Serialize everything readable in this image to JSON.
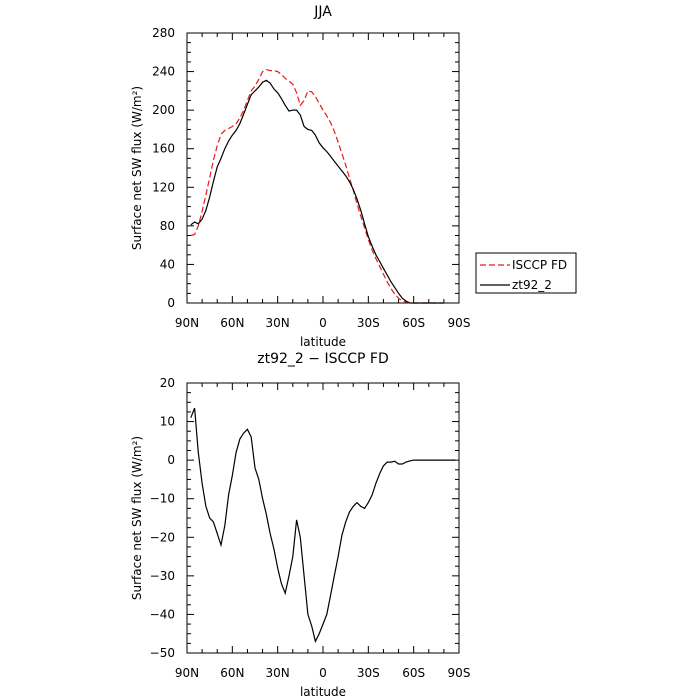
{
  "chart_data": [
    {
      "type": "line",
      "title": "JJA",
      "xlabel": "latitude",
      "ylabel": "Surface net SW flux (W/m²)",
      "xlim": [
        90,
        -90
      ],
      "ylim": [
        0,
        280
      ],
      "x_ticks": [
        90,
        60,
        30,
        0,
        -30,
        -60,
        -90
      ],
      "x_tick_labels": [
        "90N",
        "60N",
        "30N",
        "0",
        "30S",
        "60S",
        "90S"
      ],
      "y_ticks": [
        0,
        40,
        80,
        120,
        160,
        200,
        240,
        280
      ],
      "y_tick_labels": [
        "0",
        "40",
        "80",
        "120",
        "160",
        "200",
        "240",
        "280"
      ],
      "legend": "right",
      "series": [
        {
          "name": "ISCCP FD",
          "color": "#e8191c",
          "dash": "dashed",
          "x": [
            87.5,
            85,
            82.5,
            80,
            77.5,
            75,
            72.5,
            70,
            67.5,
            65,
            62.5,
            60,
            57.5,
            55,
            52.5,
            50,
            47.5,
            45,
            42.5,
            40,
            37.5,
            35,
            32.5,
            30,
            27.5,
            25,
            22.5,
            20,
            17.5,
            15,
            12.5,
            10,
            7.5,
            5,
            2.5,
            0,
            -2.5,
            -5,
            -7.5,
            -10,
            -12.5,
            -15,
            -17.5,
            -20,
            -22.5,
            -25,
            -27.5,
            -30,
            -32.5,
            -35,
            -37.5,
            -40,
            -42.5,
            -45,
            -47.5,
            -50,
            -52.5,
            -55,
            -57.5,
            -60,
            -62.5,
            -65,
            -67.5,
            -70,
            -72.5,
            -75,
            -77.5,
            -80
          ],
          "y": [
            70,
            71,
            80,
            95,
            112,
            130,
            148,
            163,
            175,
            179,
            181,
            183,
            186,
            192,
            200,
            210,
            220,
            225,
            232,
            240,
            242,
            241,
            241,
            240,
            237,
            233,
            230,
            227,
            218,
            205,
            210,
            220,
            219,
            214,
            207,
            200,
            194,
            187,
            178,
            167,
            155,
            143,
            130,
            117,
            103,
            90,
            78,
            66,
            55,
            46,
            38,
            30,
            22,
            15,
            9,
            5,
            2,
            1,
            0,
            0,
            0,
            0,
            0,
            0,
            0,
            0,
            0,
            0
          ]
        },
        {
          "name": "zt92_2",
          "color": "#000000",
          "dash": "solid",
          "x": [
            87.5,
            85,
            82.5,
            80,
            77.5,
            75,
            72.5,
            70,
            67.5,
            65,
            62.5,
            60,
            57.5,
            55,
            52.5,
            50,
            47.5,
            45,
            42.5,
            40,
            37.5,
            35,
            32.5,
            30,
            27.5,
            25,
            22.5,
            20,
            17.5,
            15,
            12.5,
            10,
            7.5,
            5,
            2.5,
            0,
            -2.5,
            -5,
            -7.5,
            -10,
            -12.5,
            -15,
            -17.5,
            -20,
            -22.5,
            -25,
            -27.5,
            -30,
            -32.5,
            -35,
            -37.5,
            -40,
            -42.5,
            -45,
            -47.5,
            -50,
            -52.5,
            -55,
            -57.5,
            -60,
            -62.5,
            -65,
            -67.5,
            -70,
            -72.5,
            -75,
            -77.5,
            -80
          ],
          "y": [
            81,
            84,
            82,
            87,
            96,
            110,
            126,
            141,
            150,
            160,
            168,
            174,
            179,
            186,
            196,
            206,
            216,
            220,
            224,
            229,
            231,
            228,
            222,
            218,
            212,
            205,
            199,
            200,
            200,
            195,
            183,
            180,
            179,
            174,
            166,
            161,
            157,
            152,
            147,
            142,
            137,
            132,
            126,
            118,
            108,
            96,
            82,
            69,
            59,
            50,
            43,
            36,
            29,
            22,
            16,
            10,
            5,
            2,
            0,
            0,
            0,
            0,
            0,
            0,
            0,
            0,
            0,
            0
          ]
        }
      ]
    },
    {
      "type": "line",
      "title": "zt92_2 − ISCCP FD",
      "xlabel": "latitude",
      "ylabel": "Surface net SW flux (W/m²)",
      "xlim": [
        90,
        -90
      ],
      "ylim": [
        -50,
        20
      ],
      "x_ticks": [
        90,
        60,
        30,
        0,
        -30,
        -60,
        -90
      ],
      "x_tick_labels": [
        "90N",
        "60N",
        "30N",
        "0",
        "30S",
        "60S",
        "90S"
      ],
      "y_ticks": [
        -50,
        -40,
        -30,
        -20,
        -10,
        0,
        10,
        20
      ],
      "y_tick_labels": [
        "−50",
        "−40",
        "−30",
        "−20",
        "−10",
        "0",
        "10",
        "20"
      ],
      "series": [
        {
          "color": "#000000",
          "dash": "solid",
          "x": [
            87.5,
            85,
            82.5,
            80,
            77.5,
            75,
            72.5,
            70,
            67.5,
            65,
            62.5,
            60,
            57.5,
            55,
            52.5,
            50,
            47.5,
            45,
            42.5,
            40,
            37.5,
            35,
            32.5,
            30,
            27.5,
            25,
            22.5,
            20,
            17.5,
            15,
            12.5,
            10,
            7.5,
            5,
            2.5,
            0,
            -2.5,
            -5,
            -7.5,
            -10,
            -12.5,
            -15,
            -17.5,
            -20,
            -22.5,
            -25,
            -27.5,
            -30,
            -32.5,
            -35,
            -37.5,
            -40,
            -42.5,
            -45,
            -47.5,
            -50,
            -52.5,
            -55,
            -57.5,
            -60,
            -62.5,
            -65,
            -67.5,
            -70,
            -72.5,
            -75,
            -77.5,
            -80,
            -82.5,
            -85,
            -87.5
          ],
          "y": [
            11,
            13.5,
            2,
            -6,
            -12,
            -15,
            -16,
            -19,
            -22,
            -17,
            -9,
            -4,
            2,
            5.5,
            7,
            8,
            6,
            -2,
            -5,
            -10,
            -14,
            -19,
            -23,
            -28,
            -32,
            -34.5,
            -30,
            -25,
            -15.5,
            -20,
            -30,
            -40,
            -43,
            -47,
            -45,
            -42.5,
            -40,
            -35,
            -30,
            -25,
            -19.5,
            -16,
            -13.5,
            -12,
            -11,
            -12,
            -12.5,
            -11,
            -9,
            -6,
            -3.5,
            -1.5,
            -0.5,
            -0.5,
            -0.3,
            -1,
            -1,
            -0.5,
            -0.2,
            0,
            0,
            0,
            0,
            0,
            0,
            0,
            0,
            0,
            0,
            0,
            0
          ]
        }
      ]
    }
  ]
}
